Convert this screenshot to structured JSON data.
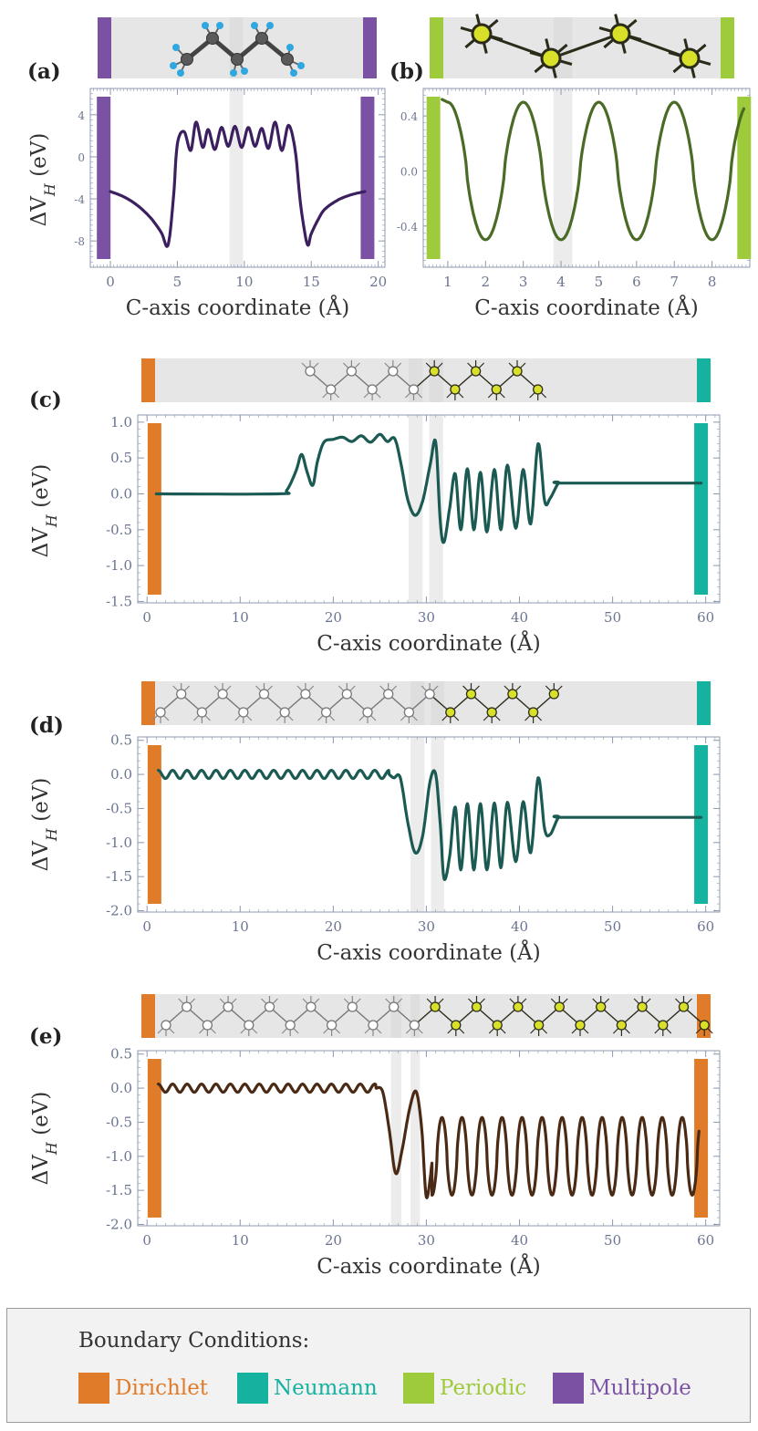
{
  "colors": {
    "Dirichlet": "#e07b2a",
    "Neumann": "#16b2a0",
    "Periodic": "#9ecb3c",
    "Multipole": "#7b52a3",
    "strip": "#e6e6e6",
    "highlight": "#ececec",
    "axis": "#8e98b0",
    "tick_text": "#6b7590"
  },
  "chart_data": [
    {
      "id": "a",
      "panel_label": "(a)",
      "type": "line",
      "xlabel": "C-axis coordinate (Å)",
      "ylabel": "ΔV_H (eV)",
      "xlim": [
        -1.5,
        20.5
      ],
      "ylim": [
        -10.5,
        6.5
      ],
      "xticks": [
        0,
        5,
        10,
        15,
        20
      ],
      "yticks": [
        4,
        0,
        -4,
        -8
      ],
      "boundary": "Multipole",
      "line_color": "#3b1f5e",
      "boundary_x": [
        -0.5,
        19.2
      ],
      "highlight_x": [
        [
          8.9,
          9.9
        ]
      ],
      "series": [
        {
          "name": "",
          "x": [
            0.0,
            1.0,
            2.0,
            3.0,
            3.8,
            4.3,
            4.7,
            5.0,
            5.5,
            6.0,
            6.4,
            6.9,
            7.3,
            7.8,
            8.3,
            8.8,
            9.3,
            9.8,
            10.3,
            10.8,
            11.3,
            11.8,
            12.3,
            12.8,
            13.3,
            13.8,
            14.2,
            14.7,
            15.0,
            15.5,
            16.0,
            17.0,
            18.0,
            19.0
          ],
          "y": [
            -3.3,
            -3.8,
            -4.6,
            -5.8,
            -7.2,
            -8.4,
            -4.0,
            1.2,
            2.4,
            0.6,
            3.3,
            0.9,
            2.6,
            0.7,
            2.8,
            1.0,
            2.9,
            0.9,
            2.8,
            1.0,
            2.7,
            0.8,
            3.3,
            0.6,
            3.0,
            0.6,
            -4.5,
            -8.3,
            -7.3,
            -6.0,
            -5.0,
            -4.1,
            -3.6,
            -3.3
          ]
        }
      ]
    },
    {
      "id": "b",
      "panel_label": "(b)",
      "type": "line",
      "xlabel": "C-axis coordinate (Å)",
      "ylabel": "",
      "xlim": [
        0.35,
        9.0
      ],
      "ylim": [
        -0.7,
        0.6
      ],
      "xticks": [
        1,
        2,
        3,
        4,
        5,
        6,
        7,
        8
      ],
      "yticks": [
        0.4,
        0.0,
        -0.4
      ],
      "boundary": "Periodic",
      "line_color": "#4a6b26",
      "boundary_x": [
        0.62,
        8.85
      ],
      "highlight_x": [
        [
          3.8,
          4.3
        ]
      ],
      "series": [
        {
          "name": "",
          "period": 2.0,
          "phase_x": 1.0,
          "amplitude": 0.5,
          "x_range": [
            1.0,
            8.85
          ]
        }
      ]
    },
    {
      "id": "c",
      "panel_label": "(c)",
      "type": "line",
      "xlabel": "C-axis coordinate (Å)",
      "ylabel": "ΔV_H (eV)",
      "xlim": [
        -1.0,
        61.5
      ],
      "ylim": [
        -1.52,
        1.1
      ],
      "xticks": [
        0,
        10,
        20,
        30,
        40,
        50,
        60
      ],
      "yticks": [
        1.0,
        0.5,
        0.0,
        -0.5,
        -1.0,
        -1.5
      ],
      "boundary": "Dirichlet",
      "boundary_right": "Neumann",
      "line_color": "#1b5a52",
      "boundary_x": [
        0.8,
        59.5
      ],
      "highlight_x": [
        [
          28.1,
          29.6
        ],
        [
          30.3,
          31.8
        ]
      ],
      "series": [
        {
          "name": "",
          "x": [
            1.0,
            14.0,
            15.0,
            16.0,
            16.6,
            17.2,
            17.8,
            18.3,
            19.0,
            20.0,
            21.0,
            22.0,
            23.0,
            24.0,
            25.0,
            25.8,
            26.6,
            27.3,
            28.0,
            28.8,
            29.6,
            30.4,
            31.0,
            31.5,
            31.9,
            32.5,
            33.1,
            33.7,
            34.4,
            35.1,
            35.8,
            36.5,
            37.3,
            38.0,
            38.7,
            39.6,
            40.4,
            41.2,
            42.0,
            42.7,
            43.3,
            44.2,
            45.0,
            59.5
          ],
          "y": [
            0.0,
            0.0,
            0.05,
            0.32,
            0.55,
            0.3,
            0.12,
            0.45,
            0.72,
            0.76,
            0.79,
            0.73,
            0.81,
            0.72,
            0.83,
            0.73,
            0.77,
            0.4,
            -0.08,
            -0.3,
            -0.1,
            0.4,
            0.72,
            -0.4,
            -0.67,
            -0.2,
            0.28,
            -0.5,
            0.35,
            -0.5,
            0.3,
            -0.53,
            0.34,
            -0.5,
            0.4,
            -0.48,
            0.34,
            -0.42,
            0.7,
            -0.1,
            -0.06,
            0.15,
            0.15,
            0.15
          ]
        }
      ]
    },
    {
      "id": "d",
      "panel_label": "(d)",
      "type": "line",
      "xlabel": "C-axis coordinate (Å)",
      "ylabel": "ΔV_H (eV)",
      "xlim": [
        -1.0,
        61.5
      ],
      "ylim": [
        -2.02,
        0.55
      ],
      "xticks": [
        0,
        10,
        20,
        30,
        40,
        50,
        60
      ],
      "yticks": [
        0.5,
        0.0,
        -0.5,
        -1.0,
        -1.5,
        -2.0
      ],
      "boundary": "Dirichlet",
      "boundary_right": "Neumann",
      "line_color": "#1b5a52",
      "boundary_x": [
        0.8,
        59.5
      ],
      "highlight_x": [
        [
          28.3,
          29.8
        ],
        [
          30.5,
          31.9
        ]
      ],
      "series": [
        {
          "name": "",
          "ripple": {
            "x_range": [
              1.2,
              26.0
            ],
            "period": 1.55,
            "amplitude": 0.06,
            "mean": 0.0
          },
          "x": [
            26.0,
            26.5,
            27.2,
            28.0,
            28.8,
            29.6,
            30.4,
            31.0,
            31.5,
            31.9,
            32.5,
            33.1,
            33.7,
            34.4,
            35.1,
            35.8,
            36.5,
            37.3,
            38.0,
            38.7,
            39.6,
            40.4,
            41.2,
            42.0,
            42.7,
            43.3,
            44.2,
            45.0,
            59.5
          ],
          "y": [
            0.0,
            -0.05,
            -0.05,
            -0.7,
            -1.15,
            -0.9,
            -0.1,
            0.0,
            -0.75,
            -1.53,
            -1.2,
            -0.48,
            -1.4,
            -0.43,
            -1.4,
            -0.43,
            -1.4,
            -0.42,
            -1.37,
            -0.41,
            -1.28,
            -0.4,
            -1.15,
            -0.05,
            -0.8,
            -0.88,
            -0.63,
            -0.63,
            -0.63
          ]
        }
      ]
    },
    {
      "id": "e",
      "panel_label": "(e)",
      "type": "line",
      "xlabel": "C-axis coordinate (Å)",
      "ylabel": "ΔV_H (eV)",
      "xlim": [
        -1.0,
        61.5
      ],
      "ylim": [
        -2.02,
        0.55
      ],
      "xticks": [
        0,
        10,
        20,
        30,
        40,
        50,
        60
      ],
      "yticks": [
        0.5,
        0.0,
        -0.5,
        -1.0,
        -1.5,
        -2.0
      ],
      "boundary": "Dirichlet",
      "boundary_right": "Dirichlet",
      "line_color": "#4a2a14",
      "boundary_x": [
        0.8,
        59.5
      ],
      "highlight_x": [
        [
          26.2,
          27.3
        ],
        [
          28.3,
          29.3
        ]
      ],
      "series": [
        {
          "name": "",
          "ripple": {
            "x_range": [
              1.2,
              24.6
            ],
            "period": 1.55,
            "amplitude": 0.06,
            "mean": 0.0
          },
          "x": [
            24.6,
            25.3,
            26.0,
            26.7,
            27.4,
            28.2,
            28.9,
            29.5,
            30.0,
            30.6
          ],
          "y": [
            0.0,
            -0.05,
            -0.6,
            -1.25,
            -0.9,
            -0.3,
            -0.05,
            -0.6,
            -1.6,
            -1.1
          ],
          "oscillation": {
            "x_range": [
              30.6,
              59.3
            ],
            "period": 2.15,
            "high": -0.43,
            "low": -1.57
          }
        }
      ]
    }
  ],
  "legend": {
    "title": "Boundary Conditions:",
    "items": [
      {
        "label": "Dirichlet",
        "color": "#e07b2a"
      },
      {
        "label": "Neumann",
        "color": "#16b2a0"
      },
      {
        "label": "Periodic",
        "color": "#9ecb3c"
      },
      {
        "label": "Multipole",
        "color": "#7b52a3"
      }
    ]
  },
  "icons": {
    "molecule_carbon": "carbon-atom-icon",
    "molecule_hydrogen": "hydrogen-atom-icon",
    "atom_open": "open-atom-icon",
    "atom_yellow": "yellow-atom-icon"
  }
}
